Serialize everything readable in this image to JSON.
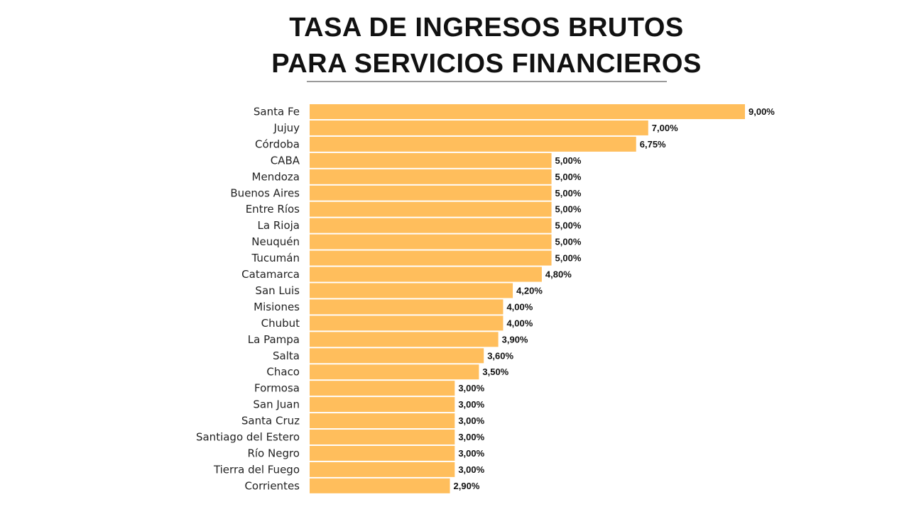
{
  "chart_data": {
    "type": "bar",
    "orientation": "horizontal",
    "title_lines": [
      "TASA DE INGRESOS BRUTOS",
      "PARA SERVICIOS FINANCIEROS"
    ],
    "categories": [
      "Santa Fe",
      "Jujuy",
      "Córdoba",
      "CABA",
      "Mendoza",
      "Buenos Aires",
      "Entre Ríos",
      "La Rioja",
      "Neuquén",
      "Tucumán",
      "Catamarca",
      "San Luis",
      "Misiones",
      "Chubut",
      "La Pampa",
      "Salta",
      "Chaco",
      "Formosa",
      "San Juan",
      "Santa Cruz",
      "Santiago del Estero",
      "Río Negro",
      "Tierra del Fuego",
      "Corrientes"
    ],
    "values": [
      9.0,
      7.0,
      6.75,
      5.0,
      5.0,
      5.0,
      5.0,
      5.0,
      5.0,
      5.0,
      4.8,
      4.2,
      4.0,
      4.0,
      3.9,
      3.6,
      3.5,
      3.0,
      3.0,
      3.0,
      3.0,
      3.0,
      3.0,
      2.9
    ],
    "value_labels": [
      "9,00%",
      "7,00%",
      "6,75%",
      "5,00%",
      "5,00%",
      "5,00%",
      "5,00%",
      "5,00%",
      "5,00%",
      "5,00%",
      "4,80%",
      "4,20%",
      "4,00%",
      "4,00%",
      "3,90%",
      "3,60%",
      "3,50%",
      "3,00%",
      "3,00%",
      "3,00%",
      "3,00%",
      "3,00%",
      "3,00%",
      "2,90%"
    ],
    "xlim": [
      0,
      9
    ],
    "bar_color": "#FFBE5C",
    "grid": false,
    "legend": "none"
  }
}
